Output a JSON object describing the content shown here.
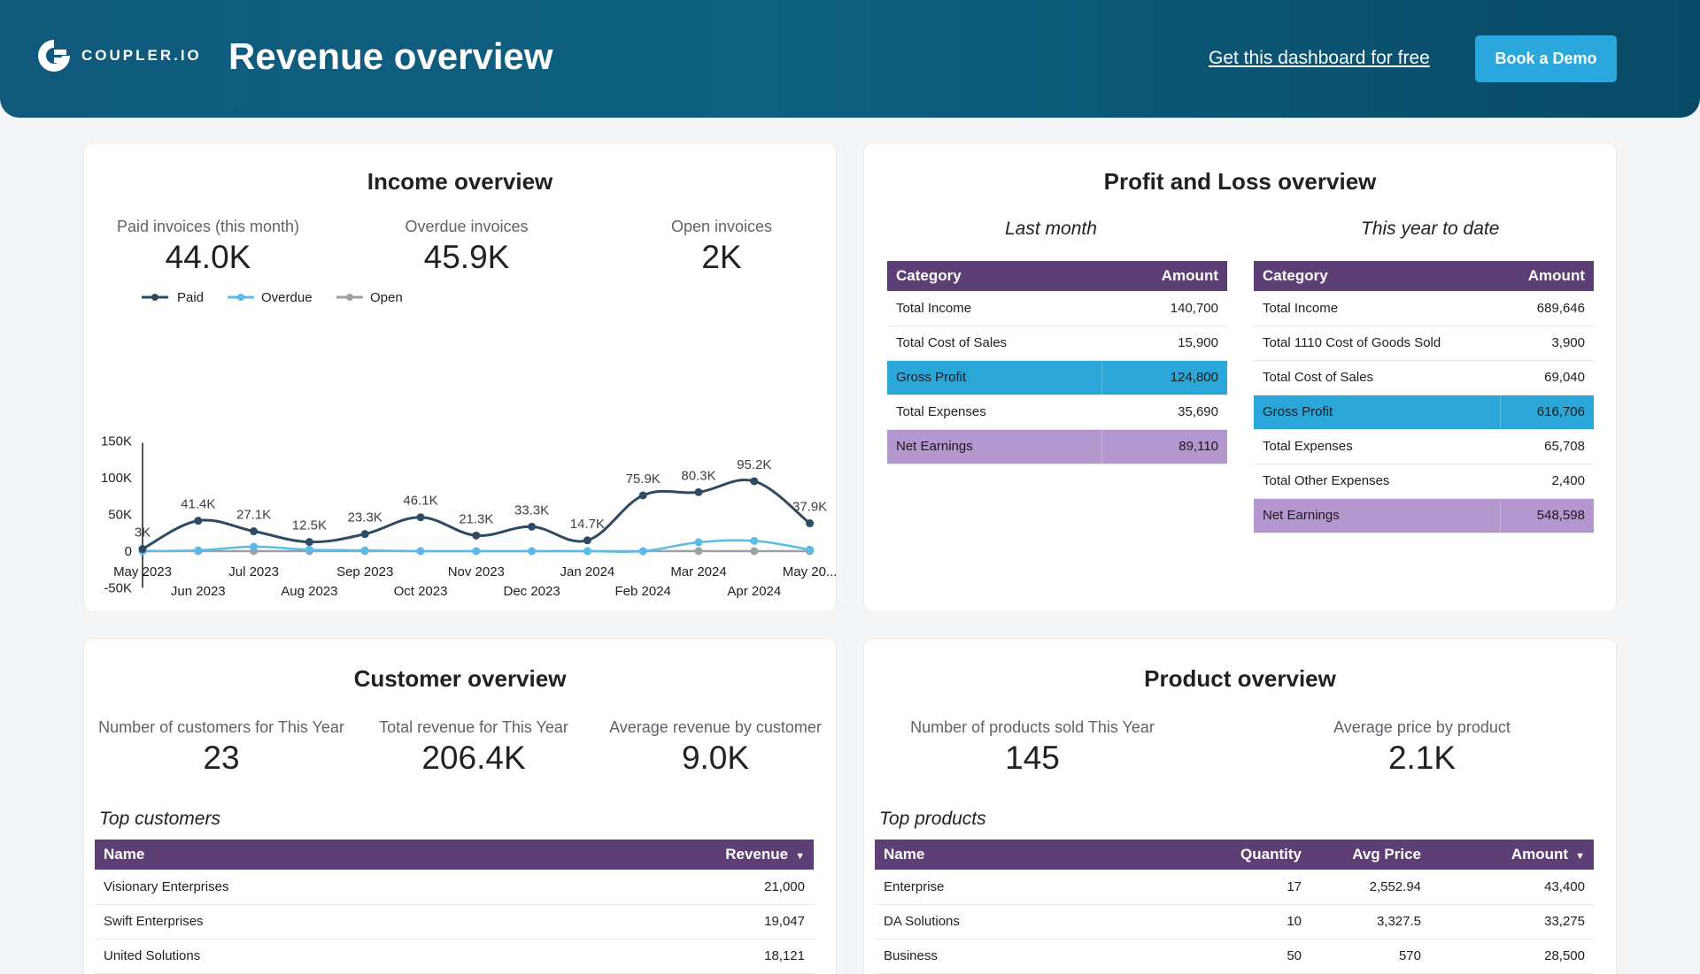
{
  "header": {
    "logo_text": "COUPLER.IO",
    "title": "Revenue overview",
    "link": "Get this dashboard for free",
    "button": "Book a Demo"
  },
  "income": {
    "title": "Income overview",
    "kpis": [
      {
        "label": "Paid invoices (this month)",
        "value": "44.0K"
      },
      {
        "label": "Overdue invoices",
        "value": "45.9K"
      },
      {
        "label": "Open invoices",
        "value": "2K"
      }
    ]
  },
  "pnl": {
    "title": "Profit and Loss overview",
    "last_month": {
      "subtitle": "Last month",
      "headers": [
        "Category",
        "Amount"
      ],
      "rows": [
        {
          "category": "Total Income",
          "amount": "140,700"
        },
        {
          "category": "Total Cost of Sales",
          "amount": "15,900"
        },
        {
          "category": "Gross Profit",
          "amount": "124,800"
        },
        {
          "category": "Total Expenses",
          "amount": "35,690"
        },
        {
          "category": "Net Earnings",
          "amount": "89,110"
        }
      ]
    },
    "ytd": {
      "subtitle": "This year to date",
      "headers": [
        "Category",
        "Amount"
      ],
      "rows": [
        {
          "category": "Total Income",
          "amount": "689,646"
        },
        {
          "category": "Total 1110 Cost of Goods Sold",
          "amount": "3,900"
        },
        {
          "category": "Total Cost of Sales",
          "amount": "69,040"
        },
        {
          "category": "Gross Profit",
          "amount": "616,706"
        },
        {
          "category": "Total Expenses",
          "amount": "65,708"
        },
        {
          "category": "Total Other Expenses",
          "amount": "2,400"
        },
        {
          "category": "Net Earnings",
          "amount": "548,598"
        }
      ]
    }
  },
  "customer": {
    "title": "Customer overview",
    "kpis": [
      {
        "label": "Number of customers for This Year",
        "value": "23"
      },
      {
        "label": "Total revenue for This Year",
        "value": "206.4K"
      },
      {
        "label": "Average revenue by customer",
        "value": "9.0K"
      }
    ],
    "table_title": "Top customers",
    "headers": [
      "Name",
      "Revenue"
    ],
    "rows": [
      {
        "name": "Visionary Enterprises",
        "revenue": "21,000"
      },
      {
        "name": "Swift Enterprises",
        "revenue": "19,047"
      },
      {
        "name": "United Solutions",
        "revenue": "18,121"
      }
    ]
  },
  "product": {
    "title": "Product overview",
    "kpis": [
      {
        "label": "Number of products sold This Year",
        "value": "145"
      },
      {
        "label": "Average price by product",
        "value": "2.1K"
      }
    ],
    "table_title": "Top products",
    "headers": [
      "Name",
      "Quantity",
      "Avg Price",
      "Amount"
    ],
    "rows": [
      {
        "name": "Enterprise",
        "quantity": "17",
        "avg_price": "2,552.94",
        "amount": "43,400"
      },
      {
        "name": "DA Solutions",
        "quantity": "10",
        "avg_price": "3,327.5",
        "amount": "33,275"
      },
      {
        "name": "Business",
        "quantity": "50",
        "avg_price": "570",
        "amount": "28,500"
      }
    ]
  },
  "colors": {
    "header_bg": "#0f5a7c",
    "accent": "#2aa7dd",
    "table_header": "#5e3f75",
    "gross_profit": "#2aa6d9",
    "net_earnings": "#b597d0",
    "paid": "#2f4b63",
    "overdue": "#5bbbe8",
    "open": "#9aa0a6"
  },
  "chart_data": {
    "type": "line",
    "title": "",
    "categories": [
      "May 2023",
      "Jun 2023",
      "Jul 2023",
      "Aug 2023",
      "Sep 2023",
      "Oct 2023",
      "Nov 2023",
      "Dec 2023",
      "Jan 2024",
      "Feb 2024",
      "Mar 2024",
      "Apr 2024",
      "May 20..."
    ],
    "legend": [
      "Paid",
      "Overdue",
      "Open"
    ],
    "legend_position": "top-left",
    "series": [
      {
        "name": "Paid",
        "values": [
          3,
          41.4,
          27.1,
          12.5,
          23.3,
          46.1,
          21.3,
          33.3,
          14.7,
          75.9,
          80.3,
          95.2,
          37.9
        ],
        "labels": [
          "3K",
          "41.4K",
          "27.1K",
          "12.5K",
          "23.3K",
          "46.1K",
          "21.3K",
          "33.3K",
          "14.7K",
          "75.9K",
          "80.3K",
          "95.2K",
          "37.9K"
        ]
      },
      {
        "name": "Overdue",
        "values": [
          0,
          1,
          6,
          2,
          1,
          0,
          0,
          0,
          0,
          0,
          12,
          14,
          2
        ]
      },
      {
        "name": "Open",
        "values": [
          0,
          0,
          0,
          0,
          0,
          0,
          0,
          0,
          0,
          0,
          0,
          0,
          0
        ]
      }
    ],
    "yticks": [
      "150K",
      "100K",
      "50K",
      "0",
      "-50K"
    ],
    "ylim": [
      -50,
      150
    ],
    "xlabel": "",
    "ylabel": "",
    "grid": false
  }
}
